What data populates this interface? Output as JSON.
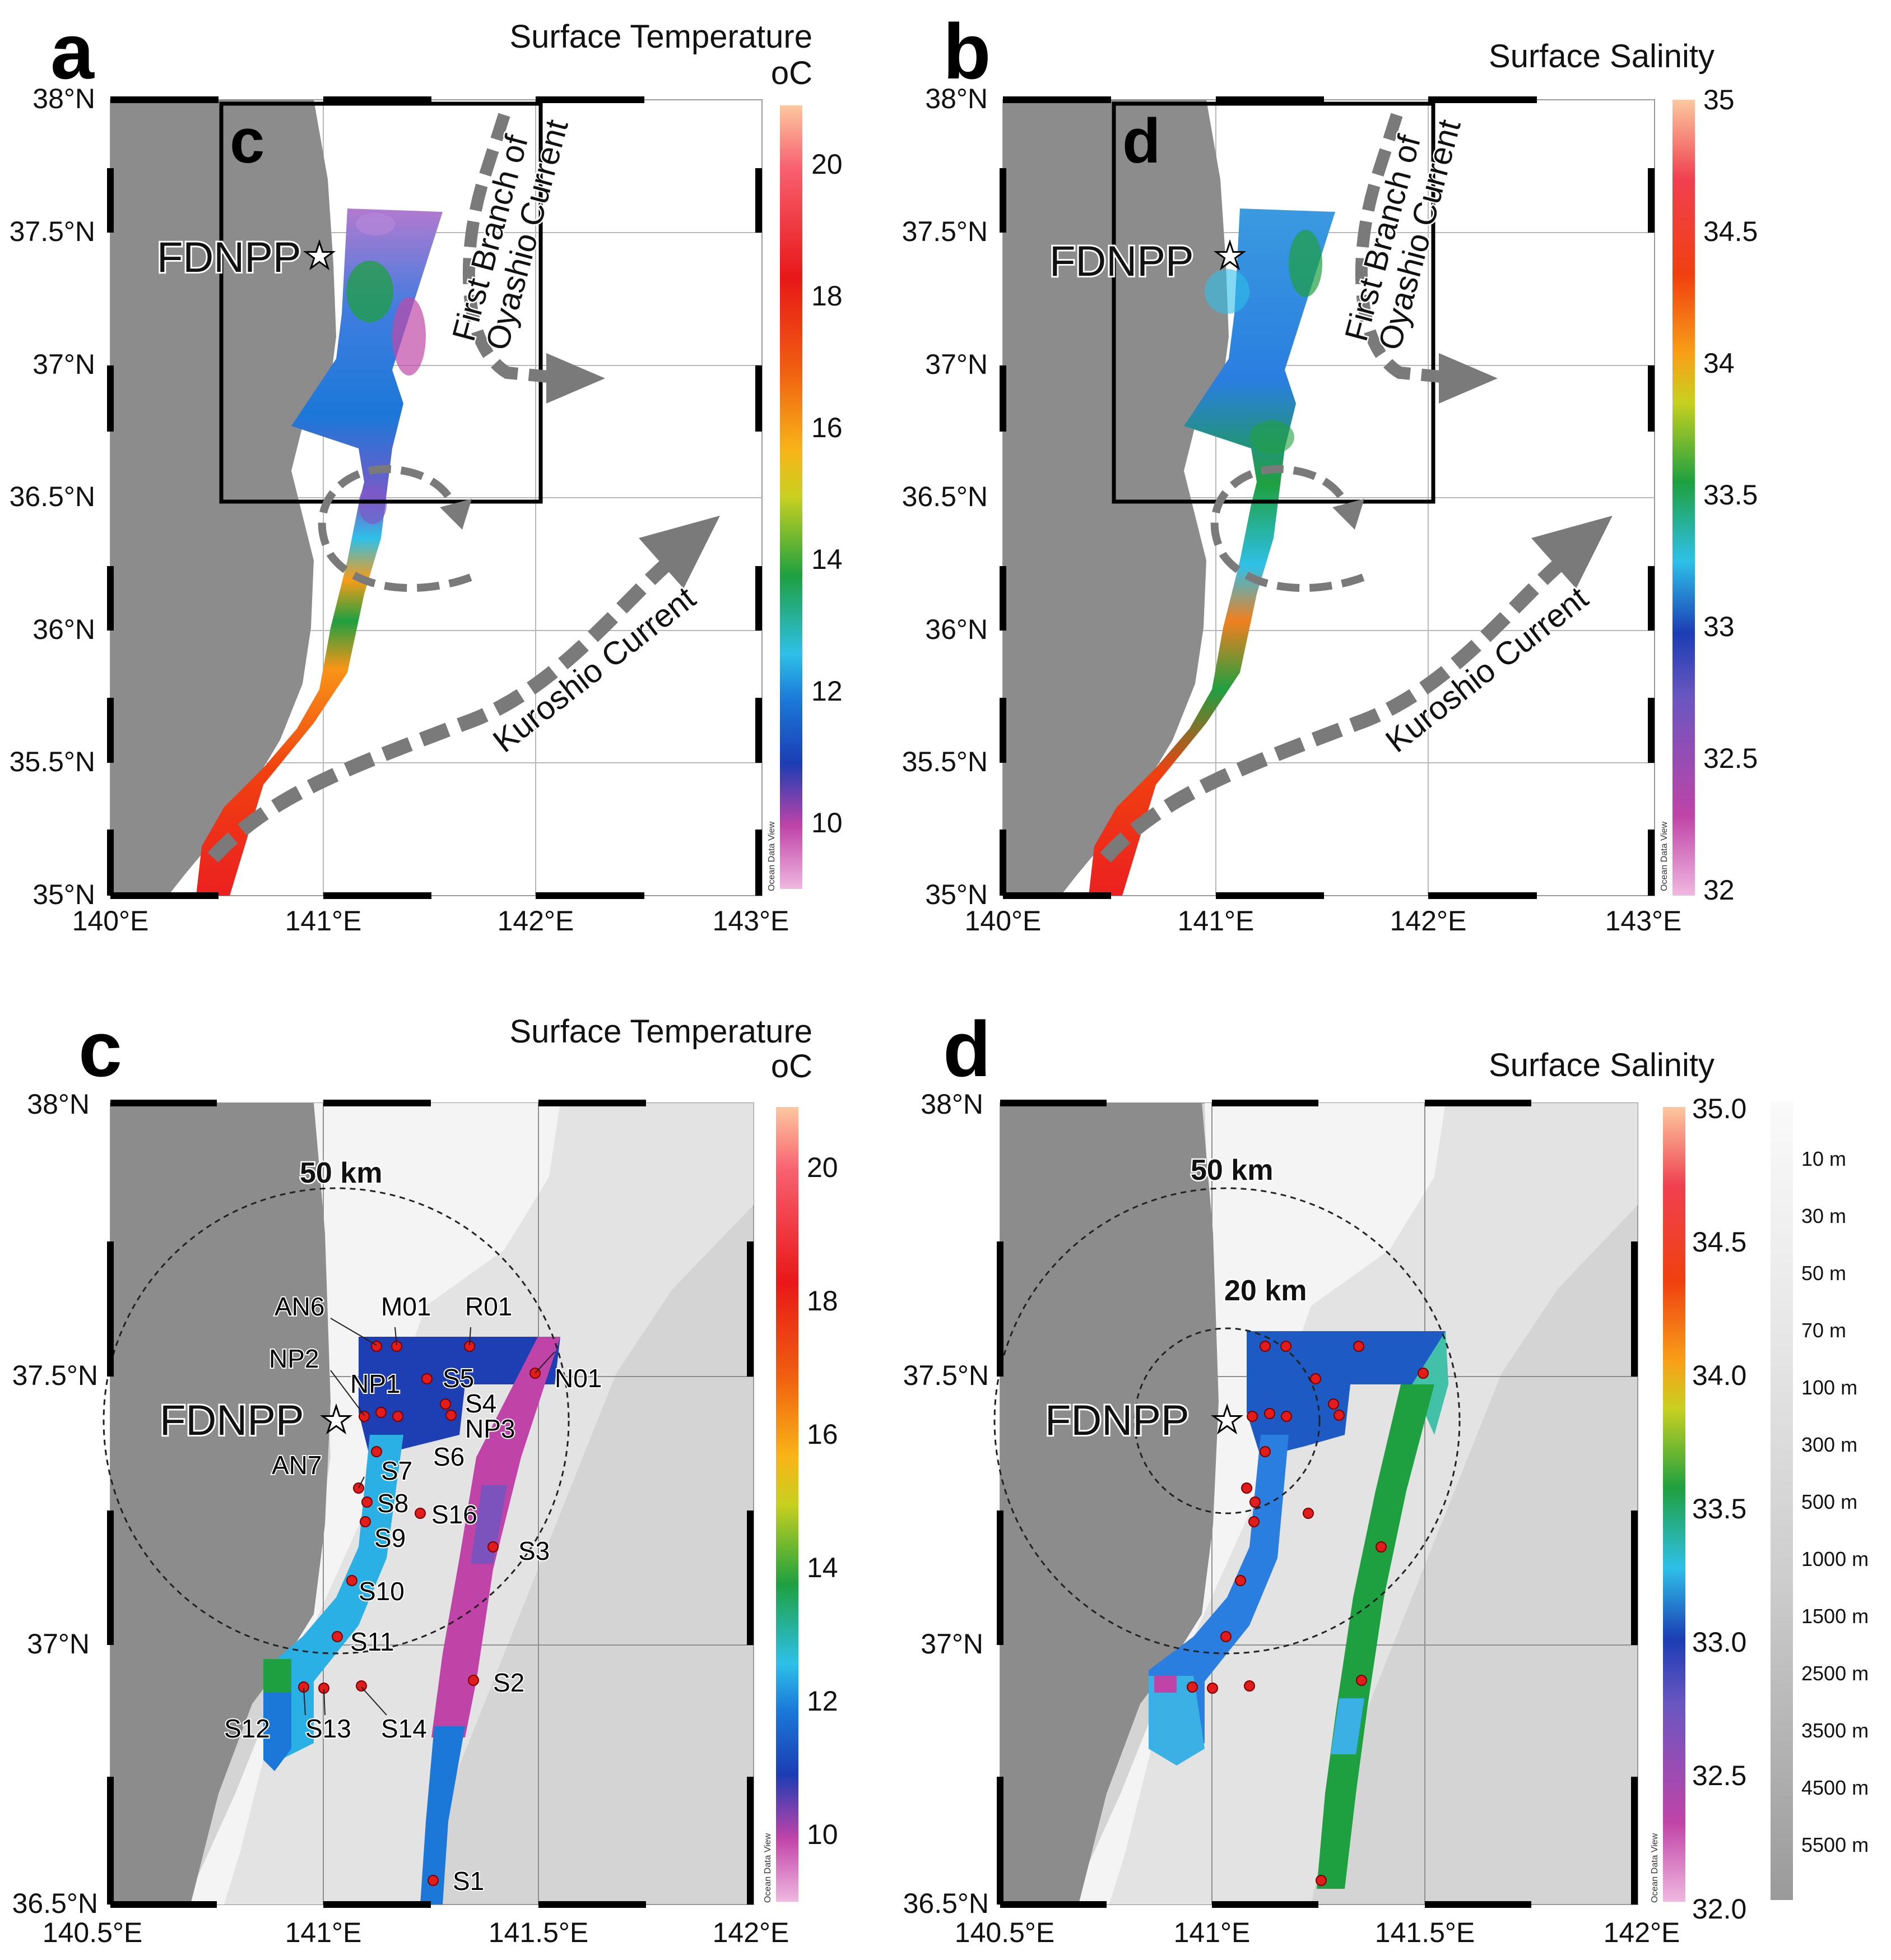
{
  "panels": {
    "a": {
      "letter": "a",
      "title": "Surface Temperature",
      "unit": "oC",
      "inset_letter": "c"
    },
    "b": {
      "letter": "b",
      "title": "Surface Salinity",
      "inset_letter": "d"
    },
    "c": {
      "letter": "c",
      "title": "Surface Temperature",
      "unit": "oC"
    },
    "d": {
      "letter": "d",
      "title": "Surface Salinity"
    }
  },
  "axes": {
    "top_lat": [
      "38°N",
      "37.5°N",
      "37°N",
      "36.5°N",
      "36°N",
      "35.5°N",
      "35°N"
    ],
    "top_lon": [
      "140°E",
      "141°E",
      "142°E",
      "143°E"
    ],
    "bottom_lat": [
      "38°N",
      "37.5°N",
      "37°N",
      "36.5°N"
    ],
    "bottom_lon": [
      "140.5°E",
      "141°E",
      "141.5°E",
      "142°E"
    ]
  },
  "colorbars": {
    "temperature": {
      "ticks": [
        "20",
        "18",
        "16",
        "14",
        "12",
        "10"
      ],
      "range": [
        9,
        21
      ]
    },
    "salinity_top": {
      "ticks": [
        "35",
        "34.5",
        "34",
        "33.5",
        "33",
        "32.5",
        "32"
      ],
      "range": [
        32,
        35
      ]
    },
    "salinity_bottom": {
      "ticks": [
        "35.0",
        "34.5",
        "34.0",
        "33.5",
        "33.0",
        "32.5",
        "32.0"
      ],
      "range": [
        32,
        35
      ]
    }
  },
  "depth_legend": [
    "10 m",
    "30 m",
    "50 m",
    "70 m",
    "100 m",
    "300 m",
    "500 m",
    "1000 m",
    "1500 m",
    "2500 m",
    "3500 m",
    "4500 m",
    "5500 m"
  ],
  "labels": {
    "fdnpp": "FDNPP",
    "oyashio_line1": "First Branch of",
    "oyashio_line2": "Oyashio Current",
    "kuroshio": "Kuroshio Current",
    "km50": "50 km",
    "km20": "20 km",
    "odv": "Ocean Data View"
  },
  "stations": [
    "AN6",
    "M01",
    "R01",
    "NP2",
    "NP1",
    "S5",
    "N01",
    "S4",
    "NP3",
    "S6",
    "S7",
    "AN7",
    "S8",
    "S16",
    "S9",
    "S3",
    "S10",
    "S11",
    "S2",
    "S12",
    "S13",
    "S14",
    "S1"
  ],
  "colors": {
    "land": "#8c8c8c",
    "current_arrow": "#7a7a7a",
    "station_marker": "#e21b1b"
  }
}
